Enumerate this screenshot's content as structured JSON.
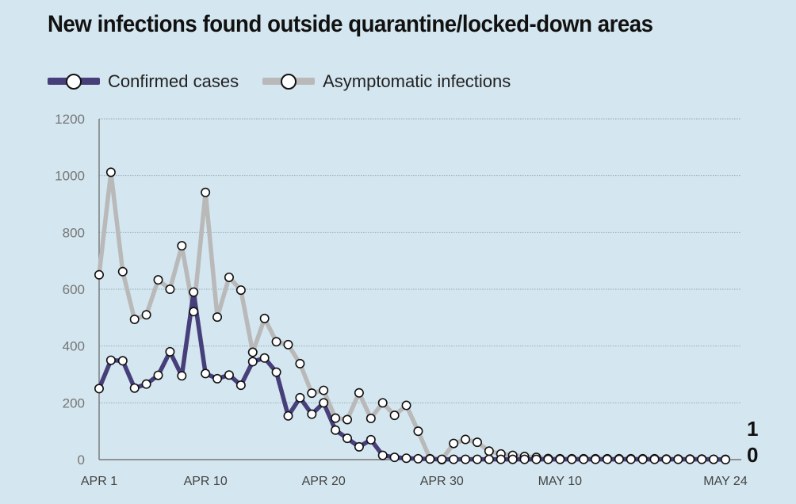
{
  "chart_data": {
    "type": "line",
    "title": "New infections found outside quarantine/locked-down areas",
    "xlabel": "",
    "ylabel": "",
    "ylim": [
      0,
      1200
    ],
    "y_ticks": [
      "0",
      "200",
      "400",
      "600",
      "800",
      "1000",
      "1200"
    ],
    "x_tick_labels": [
      {
        "day": 1,
        "label": "APR 1"
      },
      {
        "day": 10,
        "label": "APR 10"
      },
      {
        "day": 20,
        "label": "APR 20"
      },
      {
        "day": 30,
        "label": "APR 30"
      },
      {
        "day": 40,
        "label": "MAY 10"
      },
      {
        "day": 54,
        "label": "MAY 24"
      }
    ],
    "x_start": "2020-04-01",
    "grid": true,
    "legend_position": "top-left",
    "series": [
      {
        "name": "Confirmed cases",
        "color": "#463f7a",
        "values": [
          250,
          350,
          348,
          252,
          266,
          297,
          380,
          295,
          590,
          303,
          285,
          298,
          262,
          345,
          358,
          308,
          154,
          218,
          160,
          200,
          104,
          75,
          45,
          70,
          15,
          8,
          5,
          3,
          2,
          1,
          1,
          1,
          1,
          1,
          1,
          1,
          1,
          1,
          1,
          1,
          1,
          1,
          1,
          1,
          1,
          1,
          1,
          1,
          1,
          1,
          1,
          1,
          1,
          0
        ],
        "end_label": "0"
      },
      {
        "name": "Asymptomatic infections",
        "color": "#b9b9b9",
        "values": [
          651,
          1012,
          662,
          494,
          510,
          633,
          600,
          753,
          521,
          941,
          502,
          642,
          597,
          378,
          497,
          415,
          405,
          338,
          234,
          244,
          146,
          141,
          235,
          145,
          200,
          156,
          191,
          100,
          3,
          0,
          57,
          71,
          61,
          30,
          20,
          15,
          11,
          8,
          4,
          3,
          3,
          3,
          3,
          3,
          3,
          3,
          3,
          3,
          2,
          2,
          2,
          2,
          1,
          1
        ],
        "end_label": "1"
      }
    ]
  }
}
